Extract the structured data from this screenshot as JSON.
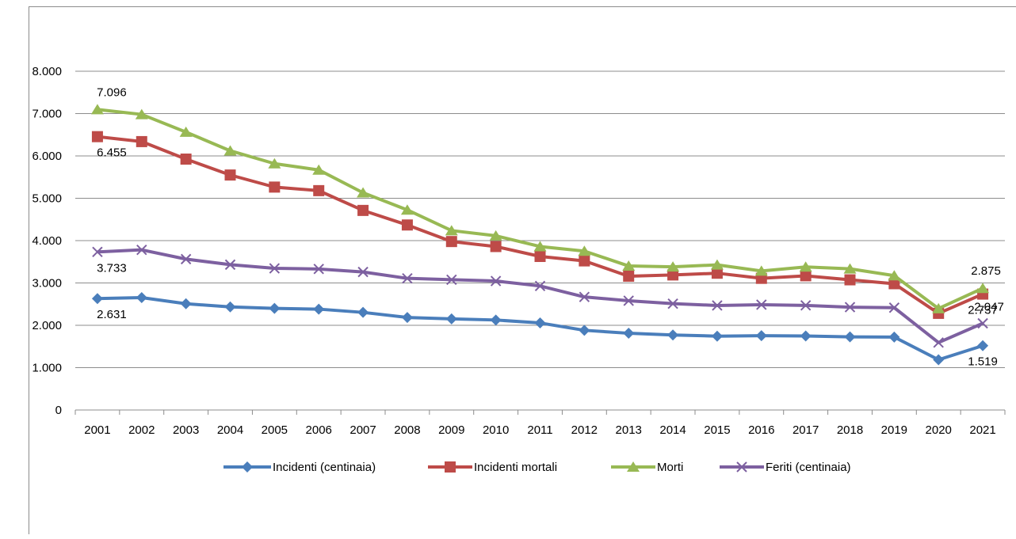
{
  "chart_data": {
    "type": "line",
    "title": "",
    "xlabel": "",
    "ylabel": "",
    "x": [
      "2001",
      "2002",
      "2003",
      "2004",
      "2005",
      "2006",
      "2007",
      "2008",
      "2009",
      "2010",
      "2011",
      "2012",
      "2013",
      "2014",
      "2015",
      "2016",
      "2017",
      "2018",
      "2019",
      "2020",
      "2021"
    ],
    "ylim": [
      0,
      8000
    ],
    "yticks": [
      {
        "value": 0,
        "label": "0"
      },
      {
        "value": 1000,
        "label": "1.000"
      },
      {
        "value": 2000,
        "label": "2.000"
      },
      {
        "value": 3000,
        "label": "3.000"
      },
      {
        "value": 4000,
        "label": "4.000"
      },
      {
        "value": 5000,
        "label": "5.000"
      },
      {
        "value": 6000,
        "label": "6.000"
      },
      {
        "value": 7000,
        "label": "7.000"
      },
      {
        "value": 8000,
        "label": "8.000"
      }
    ],
    "grid": true,
    "legend_position": "bottom",
    "series": [
      {
        "name": "Incidenti (centinaia)",
        "color": "#4a7ebb",
        "marker": "diamond",
        "values": [
          2631,
          2654,
          2509,
          2434,
          2400,
          2382,
          2305,
          2185,
          2152,
          2125,
          2055,
          1882,
          1812,
          1771,
          1744,
          1754,
          1748,
          1727,
          1722,
          1187,
          1519
        ]
      },
      {
        "name": "Incidenti mortali",
        "color": "#be4b48",
        "marker": "square",
        "values": [
          6455,
          6338,
          5925,
          5549,
          5264,
          5180,
          4713,
          4369,
          3978,
          3860,
          3626,
          3521,
          3159,
          3189,
          3230,
          3109,
          3169,
          3074,
          2982,
          2282,
          2737
        ]
      },
      {
        "name": "Morti",
        "color": "#98b954",
        "marker": "triangle",
        "values": [
          7096,
          6980,
          6563,
          6122,
          5818,
          5669,
          5131,
          4725,
          4237,
          4114,
          3860,
          3753,
          3401,
          3381,
          3428,
          3283,
          3378,
          3334,
          3173,
          2395,
          2875
        ]
      },
      {
        "name": "Feriti (centinaia)",
        "color": "#7d60a0",
        "marker": "x",
        "values": [
          3733,
          3782,
          3563,
          3432,
          3345,
          3330,
          3259,
          3109,
          3076,
          3046,
          2929,
          2670,
          2580,
          2511,
          2468,
          2487,
          2470,
          2428,
          2416,
          1593,
          2047
        ]
      }
    ],
    "annotations": [
      {
        "series": 2,
        "index": 0,
        "label": "7.096",
        "position": "above"
      },
      {
        "series": 1,
        "index": 0,
        "label": "6.455",
        "position": "below"
      },
      {
        "series": 3,
        "index": 0,
        "label": "3.733",
        "position": "below"
      },
      {
        "series": 0,
        "index": 0,
        "label": "2.631",
        "position": "below"
      },
      {
        "series": 2,
        "index": 20,
        "label": "2.875",
        "position": "above"
      },
      {
        "series": 1,
        "index": 20,
        "label": "2.737",
        "position": "below"
      },
      {
        "series": 3,
        "index": 20,
        "label": "2.047",
        "position": "right-above"
      },
      {
        "series": 0,
        "index": 20,
        "label": "1.519",
        "position": "below"
      }
    ]
  }
}
